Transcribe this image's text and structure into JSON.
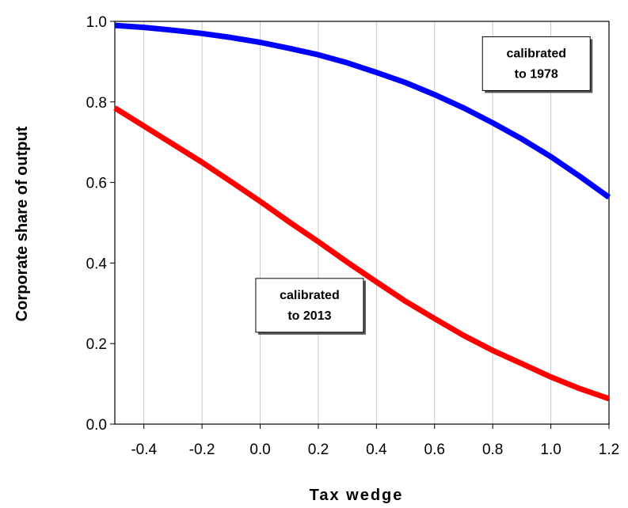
{
  "chart_data": {
    "type": "line",
    "xlabel": "Tax wedge",
    "ylabel": "Corporate share of output",
    "xlim": [
      -0.5,
      1.2
    ],
    "ylim": [
      0.0,
      1.0
    ],
    "x_ticks": [
      -0.4,
      -0.2,
      0.0,
      0.2,
      0.4,
      0.6,
      0.8,
      1.0,
      1.2
    ],
    "x_tick_labels": [
      "-0.4",
      "-0.2",
      "0.0",
      "0.2",
      "0.4",
      "0.6",
      "0.8",
      "1.0",
      "1.2"
    ],
    "y_ticks": [
      0.0,
      0.2,
      0.4,
      0.6,
      0.8,
      1.0
    ],
    "y_tick_labels": [
      "0.0",
      "0.2",
      "0.4",
      "0.6",
      "0.8",
      "1.0"
    ],
    "grid": "vertical",
    "series": [
      {
        "color": "#0000ff",
        "x": [
          -0.5,
          -0.4,
          -0.3,
          -0.2,
          -0.1,
          0.0,
          0.1,
          0.2,
          0.3,
          0.4,
          0.5,
          0.6,
          0.7,
          0.8,
          0.9,
          1.0,
          1.1,
          1.2
        ],
        "y": [
          0.99,
          0.985,
          0.978,
          0.97,
          0.96,
          0.948,
          0.933,
          0.917,
          0.897,
          0.873,
          0.848,
          0.818,
          0.785,
          0.748,
          0.708,
          0.664,
          0.615,
          0.563
        ]
      },
      {
        "color": "#ff0000",
        "x": [
          -0.5,
          -0.4,
          -0.3,
          -0.2,
          -0.1,
          0.0,
          0.1,
          0.2,
          0.3,
          0.4,
          0.5,
          0.6,
          0.7,
          0.8,
          0.9,
          1.0,
          1.1,
          1.2
        ],
        "y": [
          0.785,
          0.74,
          0.695,
          0.65,
          0.602,
          0.553,
          0.502,
          0.453,
          0.402,
          0.353,
          0.305,
          0.262,
          0.22,
          0.183,
          0.15,
          0.117,
          0.088,
          0.063
        ]
      }
    ],
    "annotations": [
      {
        "lines": [
          "calibrated",
          "to 1978"
        ],
        "x": 0.95,
        "y": 0.895
      },
      {
        "lines": [
          "calibrated",
          "to 2013"
        ],
        "x": 0.17,
        "y": 0.295
      }
    ]
  }
}
